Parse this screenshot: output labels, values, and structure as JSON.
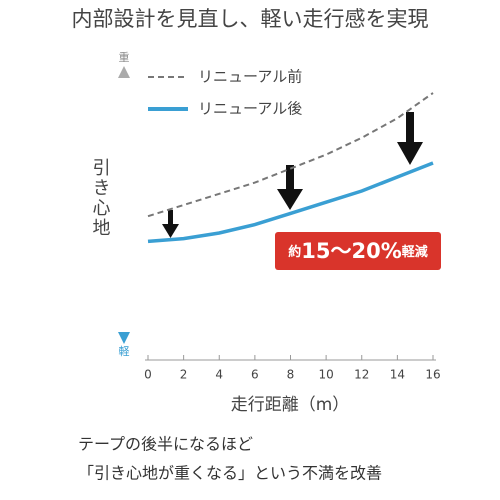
{
  "chart_data": {
    "type": "line",
    "title": "内部設計を見直し、軽い走行感を実現",
    "y_label": "引き心地",
    "y_top_label": "重",
    "y_bottom_label": "軽",
    "x_label": "走行距離（m）",
    "x": [
      0,
      2,
      4,
      6,
      8,
      10,
      12,
      14,
      16
    ],
    "series": [
      {
        "name": "リニューアル前",
        "color": "#777777",
        "dashed": true,
        "values": [
          46,
          50,
          54,
          58,
          63,
          68,
          74,
          81,
          90
        ]
      },
      {
        "name": "リニューアル後",
        "color": "#3a9fd3",
        "dashed": false,
        "values": [
          37,
          38,
          40,
          43,
          47,
          51,
          55,
          60,
          65
        ]
      }
    ],
    "xlim": [
      0,
      16
    ],
    "xticks": [
      0,
      2,
      4,
      6,
      8,
      10,
      12,
      14,
      16
    ],
    "ylim": [
      0,
      100
    ],
    "annotation": [
      "約",
      "15～20%",
      "軽減"
    ],
    "caption": [
      "テープの後半になるほど",
      "「引き心地が重くなる」という不満を改善"
    ]
  }
}
